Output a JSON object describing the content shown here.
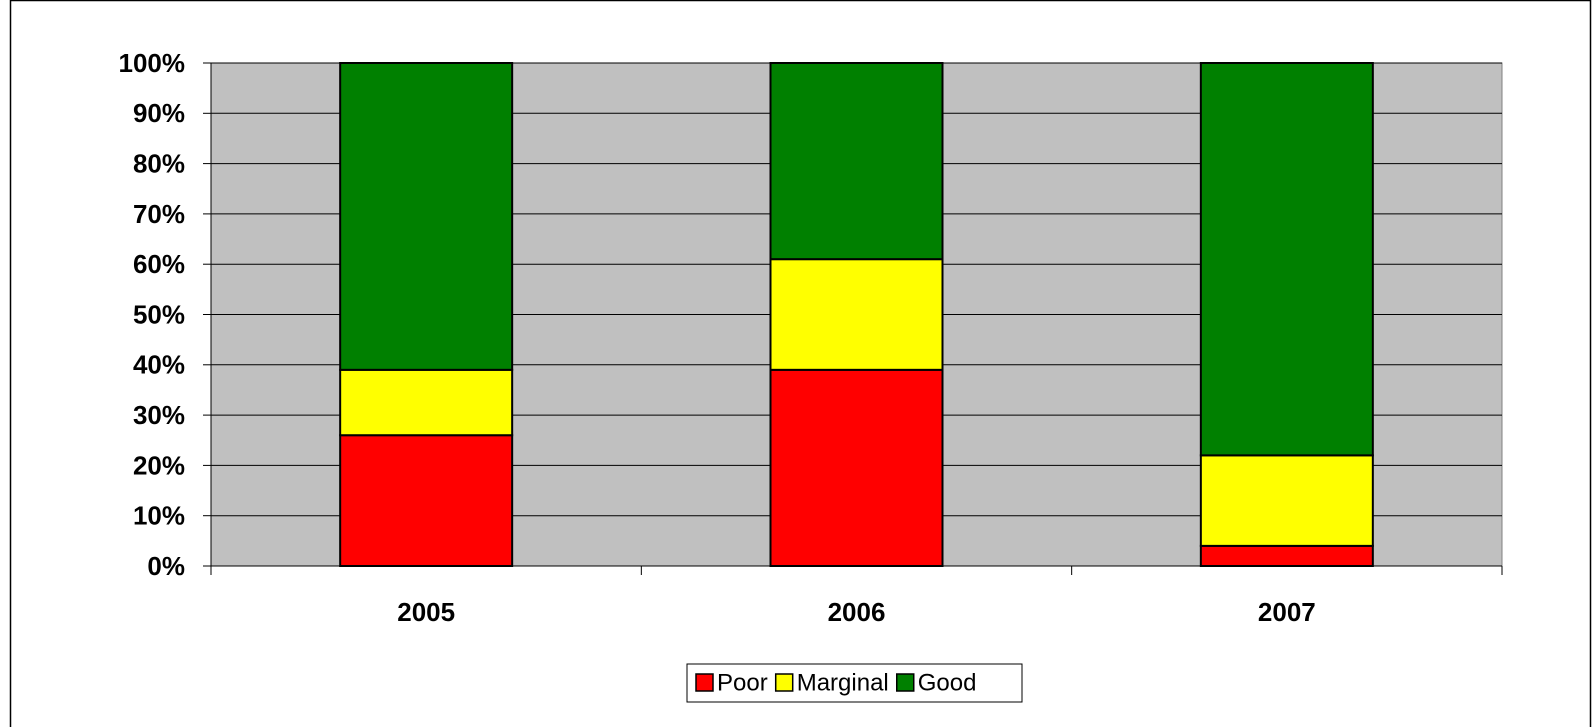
{
  "chart_data": {
    "type": "stacked_bar",
    "categories": [
      "2005",
      "2006",
      "2007"
    ],
    "series": [
      {
        "name": "Poor",
        "color": "#ff0000",
        "values": [
          26,
          39,
          4
        ]
      },
      {
        "name": "Marginal",
        "color": "#ffff00",
        "values": [
          13,
          22,
          18
        ]
      },
      {
        "name": "Good",
        "color": "#008000",
        "values": [
          61,
          39,
          78
        ]
      }
    ],
    "ylim": [
      0,
      100
    ],
    "yticks": [
      {
        "value": 0,
        "label": "0%"
      },
      {
        "value": 10,
        "label": "10%"
      },
      {
        "value": 20,
        "label": "20%"
      },
      {
        "value": 30,
        "label": "30%"
      },
      {
        "value": 40,
        "label": "40%"
      },
      {
        "value": 50,
        "label": "50%"
      },
      {
        "value": 60,
        "label": "60%"
      },
      {
        "value": 70,
        "label": "70%"
      },
      {
        "value": 80,
        "label": "80%"
      },
      {
        "value": 90,
        "label": "90%"
      },
      {
        "value": 100,
        "label": "100%"
      }
    ],
    "grid": true,
    "legend": "bottom"
  }
}
